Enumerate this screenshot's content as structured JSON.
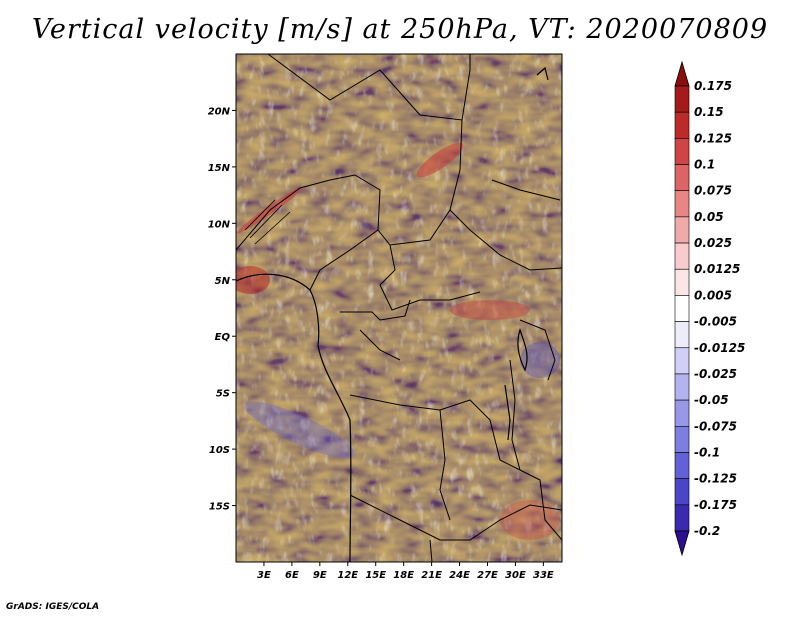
{
  "title": "Vertical velocity [m/s] at 250hPa, VT: 2020070809",
  "credit": "GrADS: IGES/COLA",
  "map": {
    "lon_range": [
      0,
      35
    ],
    "lat_range": [
      -20,
      25
    ],
    "lat_ticks": [
      {
        "value": 20,
        "label": "20N"
      },
      {
        "value": 15,
        "label": "15N"
      },
      {
        "value": 10,
        "label": "10N"
      },
      {
        "value": 5,
        "label": "5N"
      },
      {
        "value": 0,
        "label": "EQ"
      },
      {
        "value": -5,
        "label": "5S"
      },
      {
        "value": -10,
        "label": "10S"
      },
      {
        "value": -15,
        "label": "15S"
      }
    ],
    "lon_ticks": [
      {
        "value": 3,
        "label": "3E"
      },
      {
        "value": 6,
        "label": "6E"
      },
      {
        "value": 9,
        "label": "9E"
      },
      {
        "value": 12,
        "label": "12E"
      },
      {
        "value": 15,
        "label": "15E"
      },
      {
        "value": 18,
        "label": "18E"
      },
      {
        "value": 21,
        "label": "21E"
      },
      {
        "value": 24,
        "label": "24E"
      },
      {
        "value": 27,
        "label": "27E"
      },
      {
        "value": 30,
        "label": "30E"
      },
      {
        "value": 33,
        "label": "33E"
      }
    ]
  },
  "colorbar": {
    "colors": [
      "#2a0f90",
      "#3a2ab0",
      "#4b45c8",
      "#6361d6",
      "#7c7ee0",
      "#9898e8",
      "#b3b3f0",
      "#cfcff7",
      "#ececfb",
      "#ffffff",
      "#fbe6e6",
      "#f8cccc",
      "#f1aaaa",
      "#e88686",
      "#dc6464",
      "#cf4545",
      "#bd2a2a",
      "#a51a1a",
      "#8a0e0e"
    ],
    "labels": [
      "-0.2",
      "-0.175",
      "-0.125",
      "-0.1",
      "-0.075",
      "-0.05",
      "-0.025",
      "-0.0125",
      "-0.005",
      "0.005",
      "0.0125",
      "0.025",
      "0.05",
      "0.075",
      "0.1",
      "0.125",
      "0.15",
      "0.175"
    ]
  }
}
